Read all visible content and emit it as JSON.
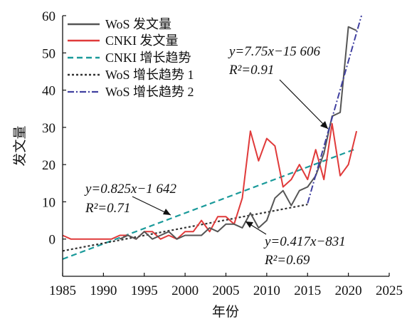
{
  "chart_data": {
    "type": "line",
    "xlabel": "年份",
    "ylabel": "发文量",
    "xlim": [
      1985,
      2025
    ],
    "ylim": [
      -10,
      60
    ],
    "x_ticks": [
      "1985",
      "1990",
      "1995",
      "2000",
      "2005",
      "2010",
      "2015",
      "2020",
      "2025"
    ],
    "y_ticks": [
      "0",
      "10",
      "20",
      "30",
      "40",
      "50",
      "60"
    ],
    "grid": false,
    "legend_position": "top-left",
    "series": [
      {
        "name": "WoS 发文量",
        "style": "solid",
        "color": "#555555",
        "x": [
          1992,
          1993,
          1994,
          1995,
          1996,
          1997,
          1998,
          1999,
          2000,
          2001,
          2002,
          2003,
          2004,
          2005,
          2006,
          2007,
          2008,
          2009,
          2010,
          2011,
          2012,
          2013,
          2014,
          2015,
          2016,
          2017,
          2018,
          2019,
          2020,
          2021
        ],
        "y": [
          0,
          1,
          0,
          2,
          0,
          1,
          2,
          0,
          1,
          1,
          1,
          3,
          2,
          4,
          4,
          3,
          7,
          3,
          5,
          11,
          13,
          9,
          13,
          14,
          17,
          23,
          33,
          34,
          57,
          56
        ]
      },
      {
        "name": "CNKI 发文量",
        "style": "solid",
        "color": "#e03a3a",
        "x": [
          1985,
          1986,
          1987,
          1988,
          1989,
          1990,
          1991,
          1992,
          1993,
          1994,
          1995,
          1996,
          1997,
          1998,
          1999,
          2000,
          2001,
          2002,
          2003,
          2004,
          2005,
          2006,
          2007,
          2008,
          2009,
          2010,
          2011,
          2012,
          2013,
          2014,
          2015,
          2016,
          2017,
          2018,
          2019,
          2020,
          2021
        ],
        "y": [
          1,
          0,
          0,
          0,
          0,
          0,
          0,
          1,
          1,
          0,
          2,
          2,
          0,
          1,
          0,
          2,
          2,
          5,
          2,
          6,
          6,
          4,
          11,
          29,
          21,
          27,
          25,
          14,
          16,
          20,
          16,
          24,
          16,
          31,
          17,
          20,
          29
        ]
      },
      {
        "name": "CNKI 增长趋势",
        "style": "dashed",
        "color": "#1a9a9a",
        "x": [
          1985,
          2021
        ],
        "y": [
          -5.4,
          24.3
        ]
      },
      {
        "name": "WoS 增长趋势 1",
        "style": "dotted",
        "color": "#333333",
        "x": [
          1985,
          2015
        ],
        "y": [
          -3.2,
          9.3
        ]
      },
      {
        "name": "WoS 增长趋势 2",
        "style": "dashdot",
        "color": "#4040a0",
        "x": [
          2015,
          2021.6
        ],
        "y": [
          9.6,
          60
        ]
      }
    ],
    "annotations": [
      {
        "id": "trend2",
        "eq": "y=7.75x−15 606",
        "r2": "R²=0.91"
      },
      {
        "id": "cnki",
        "eq": "y=0.825x−1 642",
        "r2": "R²=0.71"
      },
      {
        "id": "wos1",
        "eq": "y=0.417x−831",
        "r2": "R²=0.69"
      }
    ]
  }
}
